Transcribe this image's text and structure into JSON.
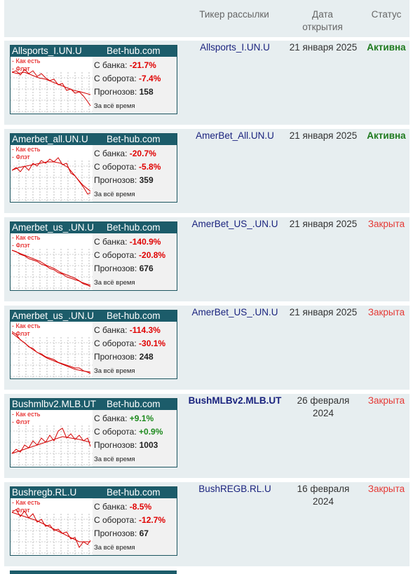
{
  "header": {
    "ticker": "Тикер рассылки",
    "date_open": "Дата открытия",
    "status": "Статус"
  },
  "widget_labels": {
    "legend_asis": "- Как есть",
    "legend_flat": "- Флэт",
    "bank": "С банка:",
    "turnover": "С оборота:",
    "forecasts": "Прогнозов:",
    "period": "За всё время"
  },
  "rows": [
    {
      "widget_name": "Allsports_I.UN.U",
      "site": "Bet-hub.com",
      "bank": "-21.7%",
      "turnover": "-7.4%",
      "forecasts": "158",
      "ticker": "Allsports_I.UN.U",
      "date": "21 января 2025",
      "status": "Активна",
      "status_kind": "active",
      "ticker_bold": false
    },
    {
      "widget_name": "Amerbet_all.UN.U",
      "site": "Bet-hub.com",
      "bank": "-20.7%",
      "turnover": "-5.8%",
      "forecasts": "359",
      "ticker": "AmerBet_All.UN.U",
      "date": "21 января 2025",
      "status": "Активна",
      "status_kind": "active",
      "ticker_bold": false
    },
    {
      "widget_name": "Amerbet_us_.UN.U",
      "site": "Bet-hub.com",
      "bank": "-140.9%",
      "turnover": "-20.8%",
      "forecasts": "676",
      "ticker": "AmerBet_US_.UN.U",
      "date": "21 января 2025",
      "status": "Закрыта",
      "status_kind": "closed",
      "ticker_bold": false
    },
    {
      "widget_name": "Amerbet_us_.UN.U",
      "site": "Bet-hub.com",
      "bank": "-114.3%",
      "turnover": "-30.1%",
      "forecasts": "248",
      "ticker": "AmerBet_US_.UN.U",
      "date": "21 января 2025",
      "status": "Закрыта",
      "status_kind": "closed",
      "ticker_bold": false
    },
    {
      "widget_name": "Bushmlbv2.MLB.UT",
      "site": "Bet-hub.com",
      "bank": "+9.1%",
      "turnover": "+0.9%",
      "forecasts": "1003",
      "ticker": "BushMLBv2.MLB.UT",
      "date": "26 февраля 2024",
      "status": "Закрыта",
      "status_kind": "closed",
      "ticker_bold": true
    },
    {
      "widget_name": "Bushregb.RL.U",
      "site": "Bet-hub.com",
      "bank": "-8.5%",
      "turnover": "-12.7%",
      "forecasts": "67",
      "ticker": "BushREGB.RL.U",
      "date": "16 февраля 2024",
      "status": "Закрыта",
      "status_kind": "closed",
      "ticker_bold": false
    }
  ],
  "colors": {
    "row_bg": "#e7eef0",
    "widget_title_bg": "#1c5c6a",
    "active": "#1e7a1e",
    "closed": "#e53935",
    "negative": "#e00000",
    "positive": "#1e8a1e",
    "ticker": "#1a237e"
  }
}
